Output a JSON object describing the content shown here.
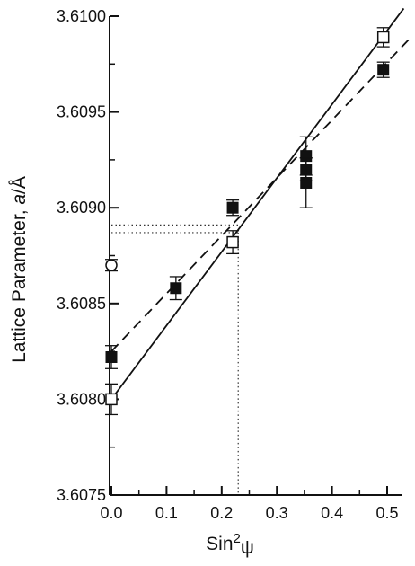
{
  "chart_data": {
    "type": "scatter",
    "title": "",
    "xlabel": "Sin²ψ",
    "xlabel_base": "Sin",
    "xlabel_sup": "2",
    "xlabel_sym": "ψ",
    "ylabel": "Lattice Parameter, a/Å",
    "ylabel_prefix": "Lattice Parameter, ",
    "ylabel_italic": "a",
    "ylabel_suffix": "/Å",
    "xlim": [
      0.0,
      0.55
    ],
    "ylim": [
      3.6075,
      3.61
    ],
    "xticks": [
      "0.0",
      "0.1",
      "0.2",
      "0.3",
      "0.4",
      "0.5"
    ],
    "xtick_values": [
      0.0,
      0.1,
      0.2,
      0.3,
      0.4,
      0.5
    ],
    "yticks": [
      "3.6075",
      "3.6080",
      "3.6085",
      "3.6090",
      "3.6095",
      "3.6100"
    ],
    "ytick_values": [
      3.6075,
      3.608,
      3.6085,
      3.609,
      3.6095,
      3.61
    ],
    "grid": false,
    "series": [
      {
        "marker": "filled-square",
        "color": "#111111",
        "points": [
          {
            "x": 0.0,
            "y": 3.60822,
            "err": 6e-05
          },
          {
            "x": 0.117,
            "y": 3.60858,
            "err": 6e-05
          },
          {
            "x": 0.22,
            "y": 3.609,
            "err": 4e-05
          },
          {
            "x": 0.353,
            "y": 3.60927,
            "err": 0.0001
          },
          {
            "x": 0.353,
            "y": 3.6092,
            "err": 6e-05
          },
          {
            "x": 0.353,
            "y": 3.60913,
            "err": 0.00013
          },
          {
            "x": 0.493,
            "y": 3.60972,
            "err": 4e-05
          }
        ]
      },
      {
        "marker": "open-square",
        "color": "#111111",
        "points": [
          {
            "x": 0.0,
            "y": 3.608,
            "err": 8e-05
          },
          {
            "x": 0.22,
            "y": 3.60882,
            "err": 6e-05
          },
          {
            "x": 0.493,
            "y": 3.60989,
            "err": 5e-05
          }
        ]
      },
      {
        "marker": "open-circle",
        "color": "#111111",
        "points": [
          {
            "x": 0.0,
            "y": 3.6087,
            "err": 3e-05
          }
        ]
      }
    ],
    "lines": [
      {
        "style": "solid",
        "x": [
          0.0,
          0.53
        ],
        "y": [
          3.608,
          3.61004
        ]
      },
      {
        "style": "dashed",
        "x": [
          0.0,
          0.54
        ],
        "y": [
          3.60825,
          3.60988
        ]
      }
    ],
    "reference_lines": [
      {
        "style": "dotted",
        "orientation": "horizontal",
        "y": 3.60891,
        "x_from": 0.0,
        "x_to": 0.23
      },
      {
        "style": "dotted",
        "orientation": "horizontal",
        "y": 3.60887,
        "x_from": 0.0,
        "x_to": 0.23
      },
      {
        "style": "dotted",
        "orientation": "vertical",
        "x": 0.23,
        "y_from": 3.60887,
        "y_to": 3.6075
      }
    ]
  }
}
